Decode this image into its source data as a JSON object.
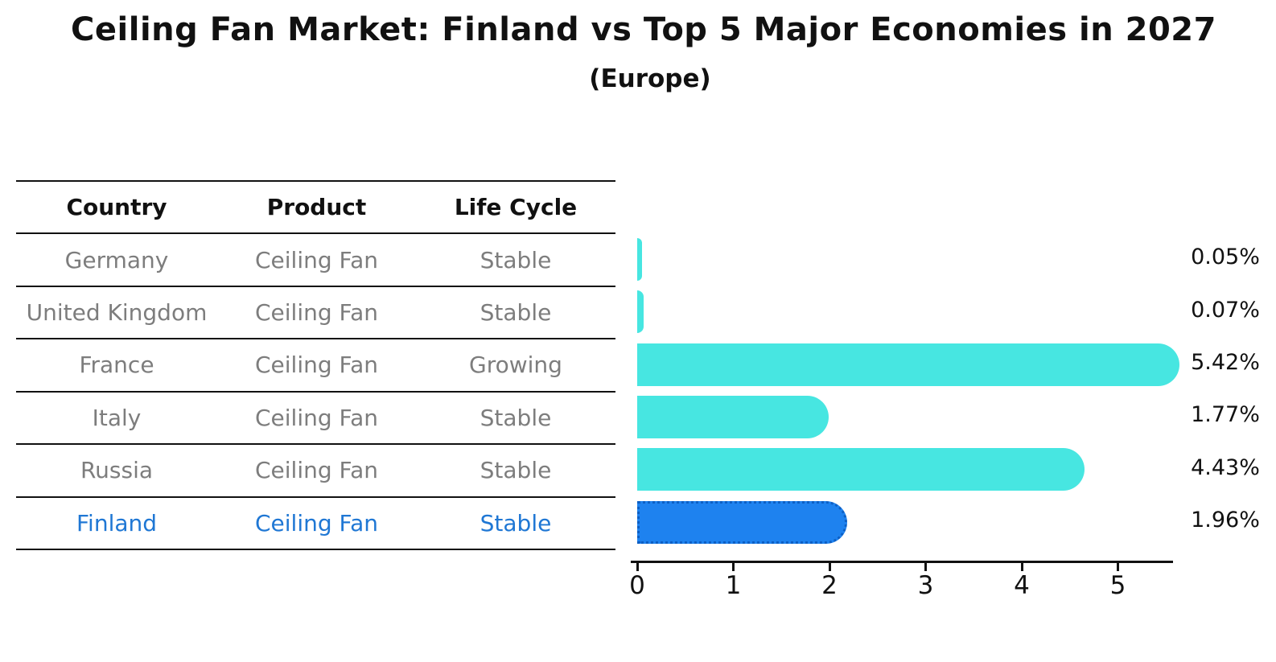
{
  "title": "Ceiling Fan Market: Finland vs Top 5 Major Economies in 2027",
  "subtitle": "(Europe)",
  "table": {
    "headers": [
      "Country",
      "Product",
      "Life Cycle"
    ],
    "rows": [
      {
        "country": "Germany",
        "product": "Ceiling Fan",
        "life_cycle": "Stable",
        "highlighted": false
      },
      {
        "country": "United Kingdom",
        "product": "Ceiling Fan",
        "life_cycle": "Stable",
        "highlighted": false
      },
      {
        "country": "France",
        "product": "Ceiling Fan",
        "life_cycle": "Growing",
        "highlighted": false
      },
      {
        "country": "Italy",
        "product": "Ceiling Fan",
        "life_cycle": "Stable",
        "highlighted": false
      },
      {
        "country": "Russia",
        "product": "Ceiling Fan",
        "life_cycle": "Stable",
        "highlighted": false
      },
      {
        "country": "Finland",
        "product": "Ceiling Fan",
        "life_cycle": "Stable",
        "highlighted": true
      }
    ]
  },
  "chart_data": {
    "type": "bar",
    "orientation": "horizontal",
    "title": "Ceiling Fan Market: Finland vs Top 5 Major Economies in 2027 (Europe)",
    "categories": [
      "Germany",
      "United Kingdom",
      "France",
      "Italy",
      "Russia",
      "Finland"
    ],
    "values": [
      0.05,
      0.07,
      5.42,
      1.77,
      4.43,
      1.96
    ],
    "value_labels": [
      "0.05%",
      "0.07%",
      "5.42%",
      "1.77%",
      "4.43%",
      "1.96%"
    ],
    "x_ticks": [
      0,
      1,
      2,
      3,
      4,
      5
    ],
    "xlim": [
      0,
      5.6
    ],
    "grid": false,
    "legend": "none",
    "bar_color": "#47e6e1",
    "highlight_index": 5,
    "highlight_color": "#1e82ef",
    "highlight_border_color": "#0d5fc4",
    "highlight_border_style": "dotted"
  },
  "colors": {
    "background": "#ffffff",
    "bar": "#47e6e1",
    "highlight_bar": "#1e82ef",
    "highlight_border": "#0d5fc4",
    "highlight_text": "#1f77d4",
    "row_text": "#7d7d7d",
    "header_text": "#111111",
    "axis": "#111111"
  }
}
